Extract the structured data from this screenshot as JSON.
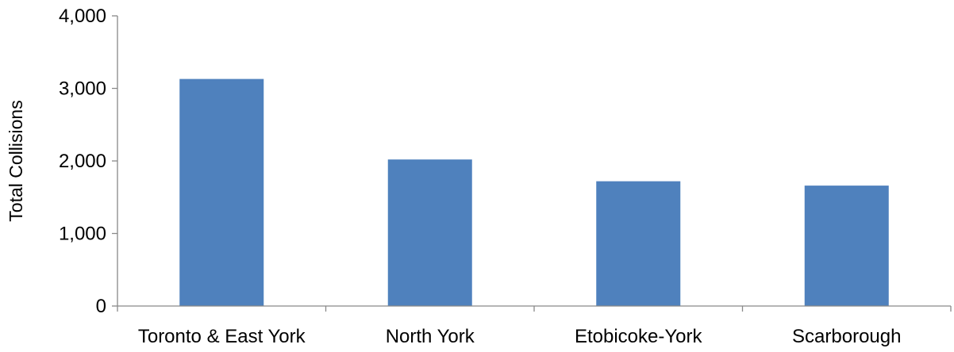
{
  "chart_data": {
    "type": "bar",
    "title": "",
    "xlabel": "",
    "ylabel": "Total Collisions",
    "categories": [
      "Toronto & East York",
      "North York",
      "Etobicoke-York",
      "Scarborough"
    ],
    "values": [
      3130,
      2020,
      1720,
      1660
    ],
    "ylim": [
      0,
      4000
    ],
    "yticks": [
      0,
      1000,
      2000,
      3000,
      4000
    ],
    "ytick_labels": [
      "0",
      "1,000",
      "2,000",
      "3,000",
      "4,000"
    ],
    "grid": false,
    "legend": "none",
    "bar_color": "#4F81BD",
    "axis_color": "#898989"
  }
}
